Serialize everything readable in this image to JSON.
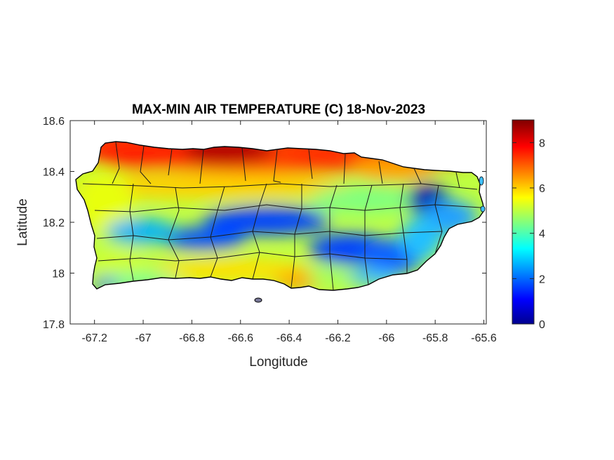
{
  "title": "MAX-MIN AIR TEMPERATURE (C) 18-Nov-2023",
  "xlabel": "Longitude",
  "ylabel": "Latitude",
  "x_ticks": [
    "-67.2",
    "-67",
    "-66.8",
    "-66.6",
    "-66.4",
    "-66.2",
    "-66",
    "-65.8",
    "-65.6"
  ],
  "y_ticks": [
    "18.6",
    "18.4",
    "18.2",
    "18",
    "17.8"
  ],
  "colorbar_ticks": [
    "8",
    "6",
    "4",
    "2",
    "0"
  ],
  "chart_data": {
    "type": "heatmap",
    "title": "MAX-MIN AIR TEMPERATURE (C) 18-Nov-2023",
    "xlabel": "Longitude",
    "ylabel": "Latitude",
    "xlim": [
      -67.3,
      -65.59
    ],
    "ylim": [
      17.8,
      18.6
    ],
    "x_tick_values": [
      -67.2,
      -67,
      -66.8,
      -66.6,
      -66.4,
      -66.2,
      -66,
      -65.8,
      -65.6
    ],
    "y_tick_values": [
      18.6,
      18.4,
      18.2,
      18,
      17.8
    ],
    "colorbar": {
      "colormap": "jet",
      "range": [
        0,
        9
      ],
      "ticks": [
        0,
        2,
        4,
        6,
        8
      ]
    },
    "region": "Puerto Rico with municipality boundaries",
    "approximate_pattern": [
      {
        "area": "north coast",
        "lon": -66.65,
        "lat": 18.45,
        "value": 8.5
      },
      {
        "area": "northwest",
        "lon": -67.05,
        "lat": 18.45,
        "value": 7.5
      },
      {
        "area": "north-central lowlands",
        "lon": -66.4,
        "lat": 18.42,
        "value": 7.5
      },
      {
        "area": "northeast",
        "lon": -66.0,
        "lat": 18.4,
        "value": 6.5
      },
      {
        "area": "west",
        "lon": -67.15,
        "lat": 18.25,
        "value": 5.5
      },
      {
        "area": "central mountains",
        "lon": -66.55,
        "lat": 18.18,
        "value": 1.5
      },
      {
        "area": "west-central mountains",
        "lon": -66.8,
        "lat": 18.12,
        "value": 1.5
      },
      {
        "area": "southeast mountains",
        "lon": -66.1,
        "lat": 18.07,
        "value": 1.5
      },
      {
        "area": "El Yunque (east)",
        "lon": -65.8,
        "lat": 18.3,
        "value": 0.5
      },
      {
        "area": "south coast",
        "lon": -66.6,
        "lat": 18.0,
        "value": 5.5
      },
      {
        "area": "southwest",
        "lon": -67.1,
        "lat": 18.0,
        "value": 4.5
      },
      {
        "area": "southeast coast",
        "lon": -65.9,
        "lat": 18.02,
        "value": 3.0
      }
    ]
  }
}
